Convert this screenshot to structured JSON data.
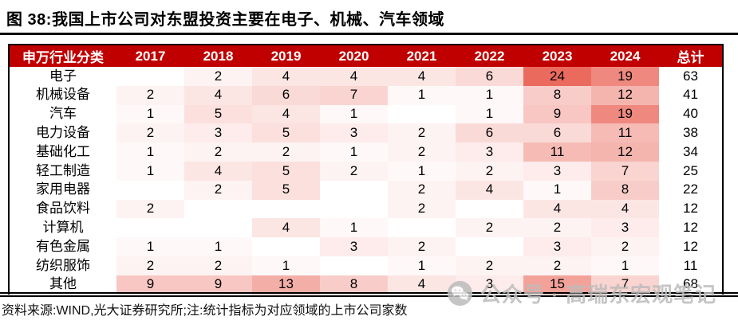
{
  "figure_title": "图 38:我国上市公司对东盟投资主要在电子、机械、汽车领域",
  "chart_data": {
    "type": "heatmap",
    "title": "图 38:我国上市公司对东盟投资主要在电子、机械、汽车领域",
    "columns": [
      "申万行业分类",
      "2017",
      "2018",
      "2019",
      "2020",
      "2021",
      "2022",
      "2023",
      "2024",
      "总计"
    ],
    "rows": [
      {
        "label": "电子",
        "values": [
          "",
          2,
          4,
          4,
          4,
          6,
          24,
          19
        ],
        "total": 63
      },
      {
        "label": "机械设备",
        "values": [
          2,
          4,
          6,
          7,
          1,
          1,
          8,
          12
        ],
        "total": 41
      },
      {
        "label": "汽车",
        "values": [
          1,
          5,
          4,
          1,
          "",
          1,
          9,
          19
        ],
        "total": 40
      },
      {
        "label": "电力设备",
        "values": [
          2,
          3,
          5,
          3,
          2,
          6,
          6,
          11
        ],
        "total": 38
      },
      {
        "label": "基础化工",
        "values": [
          1,
          2,
          2,
          1,
          2,
          3,
          11,
          12
        ],
        "total": 34
      },
      {
        "label": "轻工制造",
        "values": [
          1,
          4,
          5,
          2,
          1,
          2,
          3,
          7
        ],
        "total": 25
      },
      {
        "label": "家用电器",
        "values": [
          "",
          2,
          5,
          "",
          2,
          4,
          1,
          8
        ],
        "total": 22
      },
      {
        "label": "食品饮料",
        "values": [
          2,
          "",
          "",
          "",
          2,
          "",
          4,
          4
        ],
        "total": 12
      },
      {
        "label": "计算机",
        "values": [
          "",
          "",
          4,
          1,
          "",
          2,
          2,
          3
        ],
        "total": 12
      },
      {
        "label": "有色金属",
        "values": [
          1,
          1,
          "",
          3,
          2,
          "",
          3,
          2
        ],
        "total": 12
      },
      {
        "label": "纺织服饰",
        "values": [
          2,
          2,
          1,
          "",
          1,
          2,
          2,
          1
        ],
        "total": 11
      },
      {
        "label": "其他",
        "values": [
          9,
          9,
          13,
          8,
          4,
          3,
          15,
          7
        ],
        "total": 68
      }
    ],
    "heat_scale": {
      "min_color": "#FFFFFF",
      "max_color": "#EB6A5E",
      "max_value": 24
    },
    "header_bg": "#C00000",
    "header_text_color": "#FFFFFF",
    "legend": "none",
    "grid": "off"
  },
  "watermark": {
    "text": "公众号 · 高瑞东宏观笔记",
    "icon": "wechat-chat-bubbles-icon",
    "color": "#BCBCBC"
  },
  "source_note": "资料来源:WIND,光大证券研究所;注:统计指标为对应领域的上市公司家数"
}
